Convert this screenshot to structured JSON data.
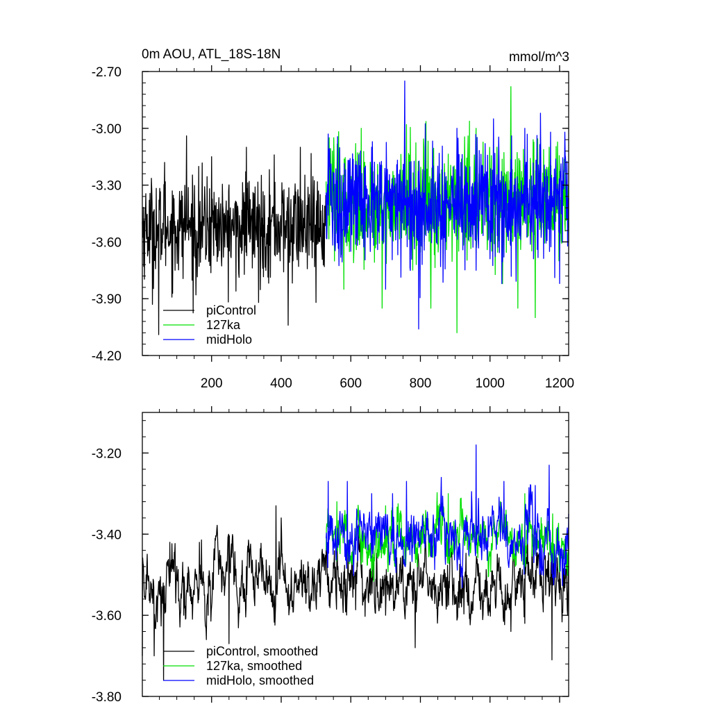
{
  "chart_data": [
    {
      "type": "line",
      "title": "0m AOU, ATL_18S-18N",
      "units": "mmol/m^3",
      "xlabel": "",
      "ylabel": "",
      "xlim": [
        1,
        1226
      ],
      "ylim": [
        -4.2,
        -2.7
      ],
      "y_ticks": [
        -4.2,
        -3.9,
        -3.6,
        -3.3,
        -3.0,
        -2.7
      ],
      "y_tick_labels": [
        "-4.20",
        "-3.90",
        "-3.60",
        "-3.30",
        "-3.00",
        "-2.70"
      ],
      "x_ticks": [
        200,
        400,
        600,
        800,
        1000,
        1200
      ],
      "x_tick_labels": [
        "200",
        "400",
        "600",
        "800",
        "1000",
        "1200"
      ],
      "legend_position": "bottom-left",
      "series": [
        {
          "name": "piControl",
          "color": "#000000",
          "x_start": 1,
          "x_end": 528,
          "mean": -3.52,
          "spread": 0.13,
          "points": [
            [
              21,
              -3.38
            ],
            [
              30,
              -3.93
            ],
            [
              48,
              -4.09
            ],
            [
              65,
              -3.18
            ],
            [
              95,
              -3.75
            ],
            [
              128,
              -3.04
            ],
            [
              155,
              -3.88
            ],
            [
              200,
              -3.15
            ],
            [
              240,
              -3.55
            ],
            [
              270,
              -3.86
            ],
            [
              300,
              -3.1
            ],
            [
              335,
              -3.92
            ],
            [
              380,
              -3.14
            ],
            [
              420,
              -4.04
            ],
            [
              455,
              -3.1
            ],
            [
              500,
              -3.92
            ]
          ]
        },
        {
          "name": "127ka",
          "color": "#00e000",
          "x_start": 529,
          "x_end": 1226,
          "mean": -3.4,
          "spread": 0.15,
          "points": [
            [
              538,
              -3.05
            ],
            [
              580,
              -3.85
            ],
            [
              630,
              -3.0
            ],
            [
              690,
              -3.95
            ],
            [
              760,
              -2.98
            ],
            [
              830,
              -3.95
            ],
            [
              905,
              -4.08
            ],
            [
              960,
              -3.0
            ],
            [
              1020,
              -3.1
            ],
            [
              1060,
              -2.78
            ],
            [
              1080,
              -3.95
            ],
            [
              1130,
              -4.0
            ],
            [
              1170,
              -3.1
            ],
            [
              1198,
              -3.7
            ]
          ]
        },
        {
          "name": "midHolo",
          "color": "#0000ff",
          "x_start": 529,
          "x_end": 1226,
          "mean": -3.4,
          "spread": 0.16,
          "points": [
            [
              535,
              -3.03
            ],
            [
              600,
              -3.65
            ],
            [
              660,
              -3.1
            ],
            [
              700,
              -3.85
            ],
            [
              755,
              -2.75
            ],
            [
              795,
              -4.06
            ],
            [
              850,
              -3.2
            ],
            [
              905,
              -3.0
            ],
            [
              960,
              -3.75
            ],
            [
              1010,
              -2.95
            ],
            [
              1040,
              -3.68
            ],
            [
              1100,
              -3.0
            ],
            [
              1145,
              -2.92
            ],
            [
              1200,
              -3.82
            ],
            [
              1215,
              -3.02
            ]
          ]
        }
      ]
    },
    {
      "type": "line",
      "title": "",
      "xlabel": "",
      "ylabel": "",
      "xlim": [
        1,
        1226
      ],
      "ylim": [
        -3.8,
        -3.1
      ],
      "y_ticks": [
        -3.8,
        -3.6,
        -3.4,
        -3.2
      ],
      "y_tick_labels": [
        "-3.80",
        "-3.60",
        "-3.40",
        "-3.20"
      ],
      "x_ticks": [
        200,
        400,
        600,
        800,
        1000,
        1200
      ],
      "legend_position": "bottom-left",
      "series": [
        {
          "name": "piControl, smoothed",
          "color": "#000000",
          "x_start": 1,
          "x_end": 1226,
          "mean": -3.52,
          "spread": 0.04,
          "points": [
            [
              1,
              -3.7
            ],
            [
              35,
              -3.7
            ],
            [
              62,
              -3.76
            ],
            [
              80,
              -3.42
            ],
            [
              120,
              -3.6
            ],
            [
              165,
              -3.42
            ],
            [
              190,
              -3.6
            ],
            [
              250,
              -3.67
            ],
            [
              300,
              -3.48
            ],
            [
              385,
              -3.33
            ],
            [
              400,
              -3.36
            ],
            [
              440,
              -3.52
            ],
            [
              470,
              -3.49
            ],
            [
              528,
              -3.5
            ],
            [
              700,
              -3.6
            ],
            [
              785,
              -3.68
            ],
            [
              900,
              -3.55
            ],
            [
              1010,
              -3.52
            ],
            [
              1060,
              -3.64
            ],
            [
              1100,
              -3.62
            ],
            [
              1160,
              -3.55
            ],
            [
              1178,
              -3.71
            ],
            [
              1200,
              -3.48
            ],
            [
              1226,
              -3.48
            ]
          ]
        },
        {
          "name": "127ka, smoothed",
          "color": "#00e000",
          "x_start": 529,
          "x_end": 1226,
          "mean": -3.42,
          "spread": 0.035,
          "points": [
            [
              529,
              -3.44
            ],
            [
              560,
              -3.32
            ],
            [
              620,
              -3.35
            ],
            [
              700,
              -3.33
            ],
            [
              780,
              -3.4
            ],
            [
              880,
              -3.3
            ],
            [
              960,
              -3.3
            ],
            [
              1030,
              -3.32
            ],
            [
              1100,
              -3.3
            ],
            [
              1180,
              -3.35
            ],
            [
              1226,
              -3.45
            ]
          ]
        },
        {
          "name": "midHolo, smoothed",
          "color": "#0000ff",
          "x_start": 529,
          "x_end": 1226,
          "mean": -3.4,
          "spread": 0.04,
          "points": [
            [
              535,
              -3.27
            ],
            [
              590,
              -3.27
            ],
            [
              660,
              -3.3
            ],
            [
              720,
              -3.3
            ],
            [
              760,
              -3.27
            ],
            [
              860,
              -3.26
            ],
            [
              960,
              -3.18
            ],
            [
              1040,
              -3.27
            ],
            [
              1130,
              -3.28
            ],
            [
              1170,
              -3.23
            ],
            [
              1190,
              -3.46
            ],
            [
              1226,
              -3.35
            ]
          ]
        }
      ]
    }
  ]
}
